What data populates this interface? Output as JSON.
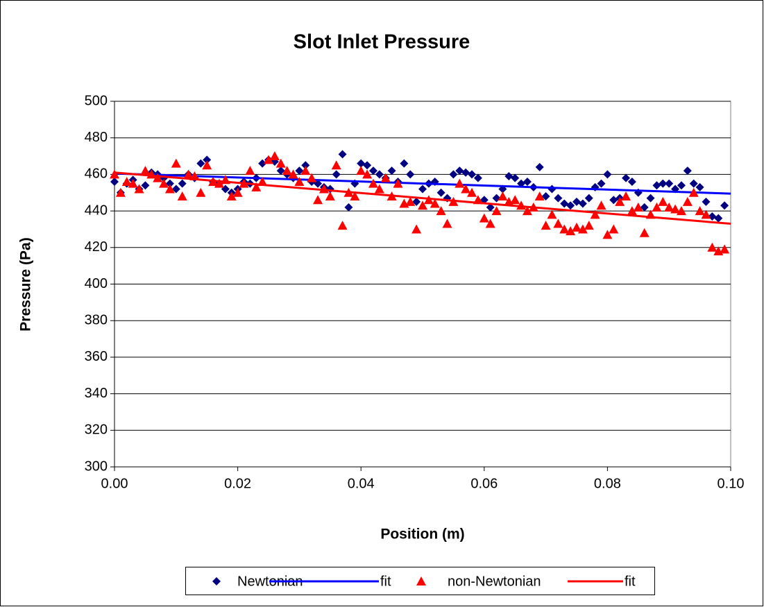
{
  "chart_data": {
    "type": "scatter",
    "title": "Slot Inlet Pressure",
    "xlabel": "Position (m)",
    "ylabel": "Pressure (Pa)",
    "xlim": [
      0,
      0.1
    ],
    "ylim": [
      300,
      500
    ],
    "xticks": [
      {
        "value": 0,
        "label": "0.00"
      },
      {
        "value": 0.02,
        "label": "0.02"
      },
      {
        "value": 0.04,
        "label": "0.04"
      },
      {
        "value": 0.06,
        "label": "0.06"
      },
      {
        "value": 0.08,
        "label": "0.08"
      },
      {
        "value": 0.1,
        "label": "0.10"
      }
    ],
    "yticks": [
      300,
      320,
      340,
      360,
      380,
      400,
      420,
      440,
      460,
      480,
      500
    ],
    "grid": true,
    "legend": "bottom",
    "series": [
      {
        "name": "Newtonian",
        "color": "#000080",
        "marker": "diamond",
        "x": [
          0,
          0.001,
          0.002,
          0.003,
          0.004,
          0.005,
          0.006,
          0.007,
          0.008,
          0.009,
          0.01,
          0.011,
          0.012,
          0.013,
          0.014,
          0.015,
          0.016,
          0.017,
          0.018,
          0.019,
          0.02,
          0.021,
          0.022,
          0.023,
          0.024,
          0.025,
          0.026,
          0.027,
          0.028,
          0.029,
          0.03,
          0.031,
          0.032,
          0.033,
          0.034,
          0.035,
          0.036,
          0.037,
          0.038,
          0.039,
          0.04,
          0.041,
          0.042,
          0.043,
          0.044,
          0.045,
          0.046,
          0.047,
          0.048,
          0.049,
          0.05,
          0.051,
          0.052,
          0.053,
          0.054,
          0.055,
          0.056,
          0.057,
          0.058,
          0.059,
          0.06,
          0.061,
          0.062,
          0.063,
          0.064,
          0.065,
          0.066,
          0.067,
          0.068,
          0.069,
          0.07,
          0.071,
          0.072,
          0.073,
          0.074,
          0.075,
          0.076,
          0.077,
          0.078,
          0.079,
          0.08,
          0.081,
          0.082,
          0.083,
          0.084,
          0.085,
          0.086,
          0.087,
          0.088,
          0.089,
          0.09,
          0.091,
          0.092,
          0.093,
          0.094,
          0.095,
          0.096,
          0.097,
          0.098,
          0.099
        ],
        "values": [
          456,
          450,
          455,
          457,
          452,
          454,
          461,
          460,
          458,
          455,
          452,
          455,
          460,
          458,
          466,
          468,
          456,
          455,
          452,
          450,
          452,
          456,
          455,
          458,
          466,
          468,
          467,
          462,
          460,
          458,
          462,
          465,
          456,
          455,
          453,
          452,
          460,
          471,
          442,
          455,
          466,
          465,
          462,
          460,
          458,
          462,
          456,
          466,
          460,
          445,
          452,
          455,
          456,
          450,
          447,
          460,
          462,
          461,
          460,
          458,
          446,
          442,
          447,
          452,
          459,
          458,
          455,
          456,
          453,
          464,
          448,
          452,
          447,
          444,
          443,
          445,
          444,
          447,
          453,
          455,
          460,
          446,
          447,
          458,
          456,
          450,
          442,
          447,
          454,
          455,
          455,
          452,
          454,
          462,
          455,
          453,
          445,
          437,
          436,
          443
        ]
      },
      {
        "name": "fit",
        "color": "#0000ff",
        "line": true,
        "x": [
          0,
          0.1
        ],
        "values": [
          460.5,
          449.5
        ]
      },
      {
        "name": "non-Newtonian",
        "color": "#ff0000",
        "marker": "triangle",
        "x": [
          0,
          0.001,
          0.002,
          0.003,
          0.004,
          0.005,
          0.006,
          0.007,
          0.008,
          0.009,
          0.01,
          0.011,
          0.012,
          0.013,
          0.014,
          0.015,
          0.016,
          0.017,
          0.018,
          0.019,
          0.02,
          0.021,
          0.022,
          0.023,
          0.024,
          0.025,
          0.026,
          0.027,
          0.028,
          0.029,
          0.03,
          0.031,
          0.032,
          0.033,
          0.034,
          0.035,
          0.036,
          0.037,
          0.038,
          0.039,
          0.04,
          0.041,
          0.042,
          0.043,
          0.044,
          0.045,
          0.046,
          0.047,
          0.048,
          0.049,
          0.05,
          0.051,
          0.052,
          0.053,
          0.054,
          0.055,
          0.056,
          0.057,
          0.058,
          0.059,
          0.06,
          0.061,
          0.062,
          0.063,
          0.064,
          0.065,
          0.066,
          0.067,
          0.068,
          0.069,
          0.07,
          0.071,
          0.072,
          0.073,
          0.074,
          0.075,
          0.076,
          0.077,
          0.078,
          0.079,
          0.08,
          0.081,
          0.082,
          0.083,
          0.084,
          0.085,
          0.086,
          0.087,
          0.088,
          0.089,
          0.09,
          0.091,
          0.092,
          0.093,
          0.094,
          0.095,
          0.096,
          0.097,
          0.098,
          0.099
        ],
        "values": [
          460,
          450,
          456,
          455,
          452,
          462,
          460,
          458,
          455,
          452,
          466,
          448,
          460,
          459,
          450,
          465,
          456,
          455,
          457,
          448,
          450,
          455,
          462,
          453,
          456,
          468,
          470,
          466,
          462,
          460,
          456,
          462,
          458,
          446,
          452,
          448,
          465,
          432,
          450,
          448,
          462,
          460,
          455,
          452,
          458,
          448,
          455,
          444,
          445,
          430,
          443,
          446,
          444,
          440,
          433,
          445,
          455,
          452,
          450,
          446,
          436,
          433,
          440,
          448,
          445,
          446,
          443,
          440,
          442,
          448,
          432,
          438,
          433,
          430,
          429,
          431,
          430,
          432,
          438,
          443,
          427,
          430,
          445,
          448,
          440,
          442,
          428,
          438,
          442,
          445,
          442,
          441,
          440,
          445,
          450,
          440,
          438,
          420,
          418,
          419
        ]
      },
      {
        "name": "fit",
        "color": "#ff0000",
        "line": true,
        "x": [
          0,
          0.1
        ],
        "values": [
          461,
          433
        ]
      }
    ]
  }
}
